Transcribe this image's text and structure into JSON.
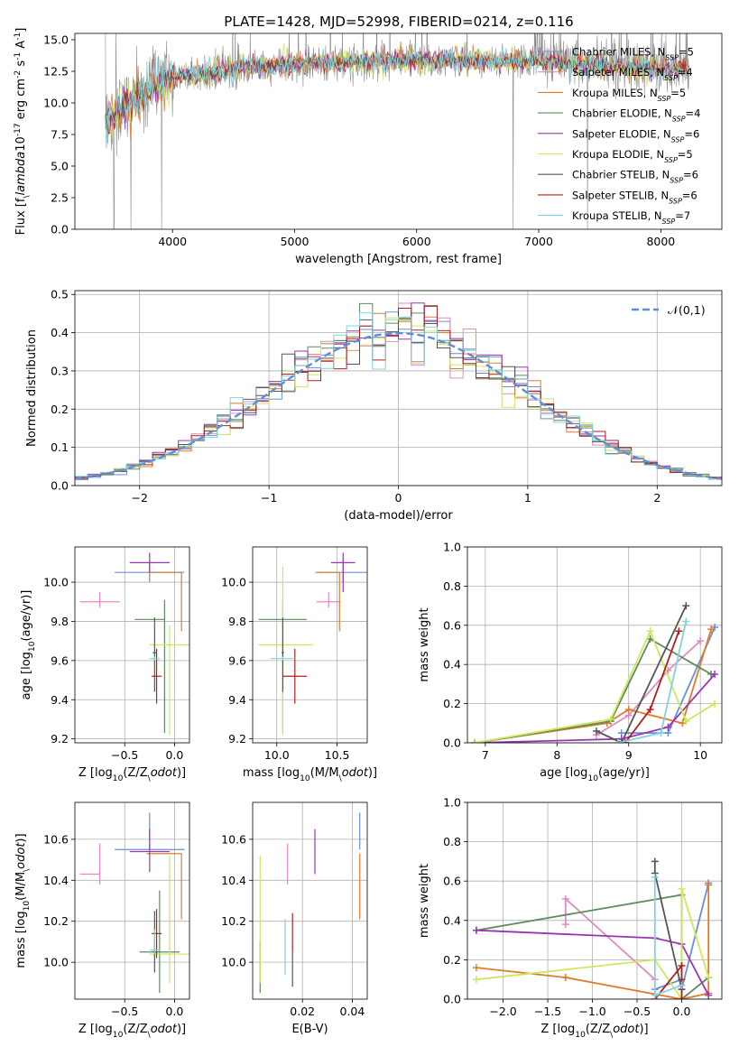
{
  "figure": {
    "title": "PLATE=1428, MJD=52998, FIBERID=0214, z=0.116"
  },
  "colors": {
    "Chabrier MILES": "#6a8fd8",
    "Salpeter MILES": "#e28ac0",
    "Kroupa MILES": "#e07b2a",
    "Chabrier ELODIE": "#5e8a5e",
    "Salpeter ELODIE": "#9a35b5",
    "Kroupa ELODIE": "#cde85a",
    "Chabrier STELIB": "#555555",
    "Salpeter STELIB": "#b21e1e",
    "Kroupa STELIB": "#7fd4dc",
    "gaussian": "#5b8fd8",
    "data": "#8a8a8a"
  },
  "chart_data": [
    {
      "id": "spectrum",
      "type": "line",
      "xlabel": "wavelength [Angstrom, rest frame]",
      "ylabel": "Flux [f$_\\lambda$10$^{-17}$ erg cm$^{-2}$ s$^{-1}$ A$^{-1}$]",
      "xlim": [
        3200,
        8500
      ],
      "ylim": [
        0,
        15.5
      ],
      "xticks": [
        4000,
        5000,
        6000,
        7000,
        8000
      ],
      "yticks": [
        0.0,
        2.5,
        5.0,
        7.5,
        10.0,
        12.5,
        15.0
      ],
      "grid": false,
      "legend": "right",
      "legend_entries": [
        {
          "name": "Chabrier MILES",
          "nssp": "5"
        },
        {
          "name": "Salpeter MILES",
          "nssp": "4"
        },
        {
          "name": "Kroupa MILES",
          "nssp": "5"
        },
        {
          "name": "Chabrier ELODIE",
          "nssp": "4"
        },
        {
          "name": "Salpeter ELODIE",
          "nssp": "6"
        },
        {
          "name": "Kroupa ELODIE",
          "nssp": "5"
        },
        {
          "name": "Chabrier STELIB",
          "nssp": "6"
        },
        {
          "name": "Salpeter STELIB",
          "nssp": "6"
        },
        {
          "name": "Kroupa STELIB",
          "nssp": "7"
        }
      ],
      "data_range": [
        3450,
        8230
      ],
      "continuum": [
        [
          3450,
          8.5
        ],
        [
          3600,
          9.8
        ],
        [
          3800,
          11.0
        ],
        [
          4000,
          12.1
        ],
        [
          4300,
          12.3
        ],
        [
          4600,
          12.9
        ],
        [
          5000,
          13.1
        ],
        [
          5500,
          13.3
        ],
        [
          6000,
          13.4
        ],
        [
          6500,
          13.3
        ],
        [
          7000,
          13.3
        ],
        [
          7500,
          13.0
        ],
        [
          8000,
          12.7
        ],
        [
          8230,
          12.6
        ]
      ],
      "drops": [
        [
          3520,
          0
        ],
        [
          3660,
          0
        ],
        [
          3910,
          0
        ],
        [
          6790,
          0
        ],
        [
          7400,
          0
        ]
      ]
    },
    {
      "id": "residuals",
      "type": "bar",
      "xlabel": "(data-model)/error",
      "ylabel": "Normed distribution",
      "xlim": [
        -2.5,
        2.5
      ],
      "ylim": [
        0,
        0.51
      ],
      "xticks": [
        -2,
        -1,
        0,
        1,
        2
      ],
      "yticks": [
        0.0,
        0.1,
        0.2,
        0.3,
        0.4,
        0.5
      ],
      "grid": true,
      "legend": "top-right",
      "gaussian_label": "$\\mathcal{N}(0,1)$",
      "bin_width": 0.1
    },
    {
      "id": "age-vs-Z",
      "type": "scatter",
      "xlabel": "Z [log$_{10}$(Z/Z$_\\odot$)]",
      "ylabel": "age  [log$_{10}$(age/yr)]",
      "xlim": [
        -1.0,
        0.15
      ],
      "ylim": [
        9.18,
        10.18
      ],
      "xticks": [
        -0.5,
        0.0
      ],
      "yticks": [
        9.2,
        9.4,
        9.6,
        9.8,
        10.0
      ],
      "grid": true,
      "points": [
        {
          "model": "Chabrier MILES",
          "x": -0.25,
          "y": 10.05,
          "xerr": [
            0.35,
            0.35
          ],
          "yerr": [
            0.05,
            0.06
          ]
        },
        {
          "model": "Salpeter MILES",
          "x": -0.75,
          "y": 9.9,
          "xerr": [
            0.2,
            0.2
          ],
          "yerr": [
            0.03,
            0.05
          ]
        },
        {
          "model": "Kroupa MILES",
          "x": 0.07,
          "y": 10.05,
          "xerr": [
            0.35,
            0.0
          ],
          "yerr": [
            0.3,
            0.0
          ]
        },
        {
          "model": "Chabrier ELODIE",
          "x": -0.1,
          "y": 9.81,
          "xerr": [
            0.3,
            0.0
          ],
          "yerr": [
            0.58,
            0.1
          ]
        },
        {
          "model": "Salpeter ELODIE",
          "x": -0.25,
          "y": 10.1,
          "xerr": [
            0.2,
            0.2
          ],
          "yerr": [
            0.05,
            0.05
          ]
        },
        {
          "model": "Kroupa ELODIE",
          "x": -0.05,
          "y": 9.68,
          "xerr": [
            0.2,
            0.2
          ],
          "yerr": [
            0.46,
            0.1
          ]
        },
        {
          "model": "Chabrier STELIB",
          "x": -0.2,
          "y": 9.64,
          "xerr": [
            0.02,
            0.02
          ],
          "yerr": [
            0.2,
            0.18
          ]
        },
        {
          "model": "Salpeter STELIB",
          "x": -0.18,
          "y": 9.52,
          "xerr": [
            0.05,
            0.05
          ],
          "yerr": [
            0.14,
            0.14
          ]
        },
        {
          "model": "Kroupa STELIB",
          "x": -0.2,
          "y": 9.61,
          "xerr": [
            0.05,
            0.05
          ],
          "yerr": [
            0.01,
            0.01
          ]
        }
      ]
    },
    {
      "id": "age-vs-mass",
      "type": "scatter",
      "xlabel": "mass [log$_{10}$(M/M$_\\odot$)]",
      "ylabel": "",
      "xlim": [
        9.8,
        10.75
      ],
      "ylim": [
        9.18,
        10.18
      ],
      "xticks": [
        10.0,
        10.5
      ],
      "yticks": [
        9.2,
        9.4,
        9.6,
        9.8,
        10.0
      ],
      "grid": true,
      "points": [
        {
          "model": "Chabrier MILES",
          "x": 10.55,
          "y": 10.05,
          "xerr": [
            0.2,
            0.2
          ],
          "yerr": [
            0.05,
            0.06
          ]
        },
        {
          "model": "Salpeter MILES",
          "x": 10.43,
          "y": 9.9,
          "xerr": [
            0.1,
            0.1
          ],
          "yerr": [
            0.03,
            0.05
          ]
        },
        {
          "model": "Kroupa MILES",
          "x": 10.52,
          "y": 10.05,
          "xerr": [
            0.2,
            0.0
          ],
          "yerr": [
            0.3,
            0.0
          ]
        },
        {
          "model": "Chabrier ELODIE",
          "x": 10.05,
          "y": 9.81,
          "xerr": [
            0.2,
            0.2
          ],
          "yerr": [
            0.58,
            0.1
          ]
        },
        {
          "model": "Salpeter ELODIE",
          "x": 10.55,
          "y": 10.1,
          "xerr": [
            0.1,
            0.1
          ],
          "yerr": [
            0.15,
            0.05
          ]
        },
        {
          "model": "Kroupa ELODIE",
          "x": 10.05,
          "y": 9.68,
          "xerr": [
            0.2,
            0.25
          ],
          "yerr": [
            0.46,
            0.4
          ]
        },
        {
          "model": "Chabrier STELIB",
          "x": 10.05,
          "y": 9.64,
          "xerr": [
            0.01,
            0.01
          ],
          "yerr": [
            0.2,
            0.18
          ]
        },
        {
          "model": "Salpeter STELIB",
          "x": 10.15,
          "y": 9.52,
          "xerr": [
            0.1,
            0.1
          ],
          "yerr": [
            0.14,
            0.14
          ]
        },
        {
          "model": "Kroupa STELIB",
          "x": 10.05,
          "y": 9.61,
          "xerr": [
            0.1,
            0.1
          ],
          "yerr": [
            0.01,
            0.01
          ]
        },
        {
          "model": "Chabrier ELODIE",
          "x": 10.05,
          "y": 9.81,
          "xerr": [
            0.0,
            0.0
          ],
          "yerr": [
            0.0,
            0.0
          ]
        }
      ]
    },
    {
      "id": "weight-vs-age",
      "type": "line",
      "xlabel": "age  [log$_{10}$(age/yr)]",
      "ylabel": "mass weight",
      "xlim": [
        6.75,
        10.3
      ],
      "ylim": [
        0,
        1
      ],
      "xticks": [
        7,
        8,
        9,
        10
      ],
      "yticks": [
        0.0,
        0.2,
        0.4,
        0.6,
        0.8,
        1.0
      ],
      "grid": true,
      "series": [
        {
          "model": "Chabrier MILES",
          "x": [
            8.9,
            9.55,
            10.2
          ],
          "y": [
            0.05,
            0.05,
            0.59
          ]
        },
        {
          "model": "Salpeter MILES",
          "x": [
            8.55,
            9.0,
            9.55,
            10.0
          ],
          "y": [
            0.04,
            0.14,
            0.37,
            0.52
          ]
        },
        {
          "model": "Kroupa MILES",
          "x": [
            6.85,
            8.7,
            9.0,
            9.75,
            10.15
          ],
          "y": [
            0.0,
            0.1,
            0.17,
            0.1,
            0.58
          ]
        },
        {
          "model": "Chabrier ELODIE",
          "x": [
            6.85,
            8.75,
            9.3,
            10.15
          ],
          "y": [
            0.0,
            0.11,
            0.53,
            0.35
          ]
        },
        {
          "model": "Salpeter ELODIE",
          "x": [
            6.85,
            8.9,
            9.55,
            10.2
          ],
          "y": [
            0.0,
            0.02,
            0.08,
            0.35
          ]
        },
        {
          "model": "Kroupa ELODIE",
          "x": [
            6.85,
            8.75,
            9.3,
            9.8,
            10.2
          ],
          "y": [
            0.0,
            0.12,
            0.57,
            0.11,
            0.2
          ]
        },
        {
          "model": "Chabrier STELIB",
          "x": [
            8.55,
            8.9,
            9.8
          ],
          "y": [
            0.06,
            0.0,
            0.7
          ]
        },
        {
          "model": "Salpeter STELIB",
          "x": [
            8.95,
            9.3,
            9.7
          ],
          "y": [
            0.0,
            0.17,
            0.57
          ]
        },
        {
          "model": "Kroupa STELIB",
          "x": [
            8.85,
            9.45,
            9.8
          ],
          "y": [
            0.0,
            0.05,
            0.62
          ]
        }
      ]
    },
    {
      "id": "mass-vs-Z",
      "type": "scatter",
      "xlabel": "Z [log$_{10}$(Z/Z$_\\odot$)]",
      "ylabel": "mass [log$_{10}$(M/M$_\\odot$)]",
      "xlim": [
        -1.0,
        0.15
      ],
      "ylim": [
        9.82,
        10.78
      ],
      "xticks": [
        -0.5,
        0.0
      ],
      "yticks": [
        10.0,
        10.2,
        10.4,
        10.6
      ],
      "grid": true,
      "points": [
        {
          "model": "Chabrier MILES",
          "x": -0.25,
          "y": 10.55,
          "xerr": [
            0.35,
            0.35
          ],
          "yerr": [
            0.0,
            0.18
          ]
        },
        {
          "model": "Salpeter MILES",
          "x": -0.75,
          "y": 10.43,
          "xerr": [
            0.2,
            0.0
          ],
          "yerr": [
            0.05,
            0.15
          ]
        },
        {
          "model": "Kroupa MILES",
          "x": 0.07,
          "y": 10.53,
          "xerr": [
            0.35,
            0.0
          ],
          "yerr": [
            0.32,
            0.0
          ]
        },
        {
          "model": "Chabrier ELODIE",
          "x": -0.15,
          "y": 10.05,
          "xerr": [
            0.2,
            0.2
          ],
          "yerr": [
            0.2,
            0.3
          ]
        },
        {
          "model": "Salpeter ELODIE",
          "x": -0.25,
          "y": 10.54,
          "xerr": [
            0.2,
            0.2
          ],
          "yerr": [
            0.1,
            0.11
          ]
        },
        {
          "model": "Kroupa ELODIE",
          "x": -0.05,
          "y": 10.04,
          "xerr": [
            0.2,
            0.2
          ],
          "yerr": [
            0.14,
            0.48
          ]
        },
        {
          "model": "Chabrier STELIB",
          "x": -0.2,
          "y": 10.05,
          "xerr": [
            0.02,
            0.02
          ],
          "yerr": [
            0.1,
            0.2
          ]
        },
        {
          "model": "Salpeter STELIB",
          "x": -0.18,
          "y": 10.14,
          "xerr": [
            0.05,
            0.05
          ],
          "yerr": [
            0.12,
            0.12
          ]
        },
        {
          "model": "Kroupa STELIB",
          "x": -0.2,
          "y": 10.06,
          "xerr": [
            0.05,
            0.05
          ],
          "yerr": [
            0.02,
            0.1
          ]
        }
      ]
    },
    {
      "id": "mass-vs-EBV",
      "type": "scatter",
      "xlabel": "E(B-V)",
      "ylabel": "",
      "xlim": [
        0.0,
        0.046
      ],
      "ylim": [
        9.82,
        10.78
      ],
      "xticks": [
        0.02,
        0.04
      ],
      "yticks": [
        10.0,
        10.2,
        10.4,
        10.6
      ],
      "grid": true,
      "points": [
        {
          "model": "Chabrier MILES",
          "x": 0.043,
          "y": 10.55,
          "yerr": [
            0.0,
            0.18
          ]
        },
        {
          "model": "Salpeter MILES",
          "x": 0.014,
          "y": 10.43,
          "yerr": [
            0.05,
            0.15
          ]
        },
        {
          "model": "Kroupa MILES",
          "x": 0.043,
          "y": 10.53,
          "yerr": [
            0.32,
            0.0
          ]
        },
        {
          "model": "Chabrier ELODIE",
          "x": 0.003,
          "y": 10.0,
          "yerr": [
            0.15,
            0.1
          ]
        },
        {
          "model": "Salpeter ELODIE",
          "x": 0.025,
          "y": 10.54,
          "yerr": [
            0.11,
            0.11
          ]
        },
        {
          "model": "Kroupa ELODIE",
          "x": 0.003,
          "y": 10.25,
          "yerr": [
            0.35,
            0.27
          ]
        },
        {
          "model": "Chabrier STELIB",
          "x": 0.016,
          "y": 10.0,
          "yerr": [
            0.12,
            0.05
          ]
        },
        {
          "model": "Salpeter STELIB",
          "x": 0.016,
          "y": 10.1,
          "yerr": [
            0.05,
            0.14
          ]
        },
        {
          "model": "Kroupa STELIB",
          "x": 0.013,
          "y": 10.07,
          "yerr": [
            0.13,
            0.14
          ]
        }
      ]
    },
    {
      "id": "weight-vs-Z",
      "type": "line",
      "xlabel": "Z [log$_{10}$(Z/Z$_\\odot$)]",
      "ylabel": "mass weight",
      "xlim": [
        -2.4,
        0.45
      ],
      "ylim": [
        0,
        1
      ],
      "xticks": [
        -2.0,
        -1.5,
        -1.0,
        -0.5,
        0.0
      ],
      "yticks": [
        0.0,
        0.2,
        0.4,
        0.6,
        0.8,
        1.0
      ],
      "grid": true,
      "series": [
        {
          "model": "Chabrier MILES",
          "x": [
            -0.3,
            0.0,
            0.0,
            0.3
          ],
          "y": [
            0.05,
            0.1,
            0.05,
            0.59
          ]
        },
        {
          "model": "Salpeter MILES",
          "x": [
            -0.3,
            -1.3,
            -1.3
          ],
          "y": [
            0.1,
            0.51,
            0.38
          ]
        },
        {
          "model": "Kroupa MILES",
          "x": [
            -2.3,
            -1.3,
            0.0,
            0.3,
            0.3
          ],
          "y": [
            0.16,
            0.11,
            0.0,
            0.03,
            0.58
          ]
        },
        {
          "model": "Chabrier ELODIE",
          "x": [
            -2.3,
            0.0,
            0.0,
            0.3
          ],
          "y": [
            0.35,
            0.53,
            0.0,
            0.11
          ]
        },
        {
          "model": "Salpeter ELODIE",
          "x": [
            -2.3,
            -0.3,
            0.0,
            0.3
          ],
          "y": [
            0.35,
            0.31,
            0.28,
            0.02
          ]
        },
        {
          "model": "Kroupa ELODIE",
          "x": [
            -2.3,
            -0.3,
            0.0,
            0.0,
            0.3
          ],
          "y": [
            0.1,
            0.2,
            0.0,
            0.56,
            0.11
          ]
        },
        {
          "model": "Chabrier STELIB",
          "x": [
            -0.3,
            -0.3,
            0.0,
            0.0
          ],
          "y": [
            0.7,
            0.64,
            0.05,
            0.1
          ]
        },
        {
          "model": "Salpeter STELIB",
          "x": [
            -0.3,
            0.0,
            0.0
          ],
          "y": [
            0.0,
            0.17,
            0.0
          ]
        },
        {
          "model": "Kroupa STELIB",
          "x": [
            -0.3,
            -0.3,
            0.0
          ],
          "y": [
            0.62,
            0.02,
            0.07
          ]
        }
      ]
    }
  ]
}
